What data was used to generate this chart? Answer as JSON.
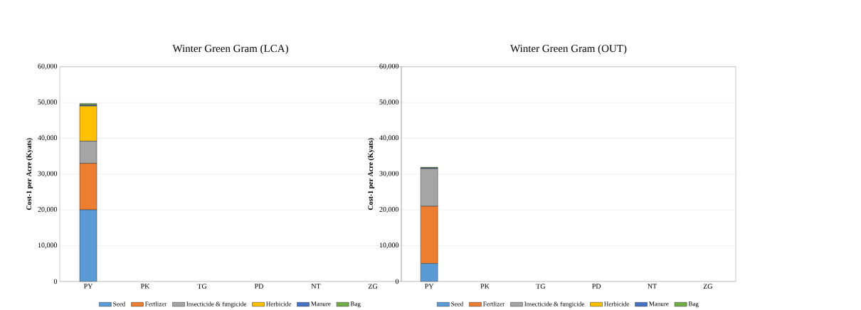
{
  "chart_data": [
    {
      "type": "bar",
      "stacked": true,
      "title": "Winter Green Gram (LCA)",
      "ylabel": "Cost-1 per Acre (Kyats)",
      "categories": [
        "PY",
        "PK",
        "TG",
        "PD",
        "NT",
        "ZG"
      ],
      "series": [
        {
          "name": "Seed",
          "color": "#5b9bd5",
          "values": [
            20000,
            null,
            null,
            null,
            null,
            null
          ]
        },
        {
          "name": "Fertlizer",
          "color": "#ed7d31",
          "values": [
            13000,
            null,
            null,
            null,
            null,
            null
          ]
        },
        {
          "name": "Insecticide & fungicide",
          "color": "#a5a5a5",
          "values": [
            6200,
            null,
            null,
            null,
            null,
            null
          ]
        },
        {
          "name": "Herbicide",
          "color": "#ffc000",
          "values": [
            9800,
            null,
            null,
            null,
            null,
            null
          ]
        },
        {
          "name": "Manure",
          "color": "#4472c4",
          "values": [
            300,
            null,
            null,
            null,
            null,
            null
          ]
        },
        {
          "name": "Bag",
          "color": "#70ad47",
          "values": [
            400,
            null,
            null,
            null,
            null,
            null
          ]
        }
      ],
      "ylim": [
        0,
        60000
      ],
      "yticks": [
        0,
        {
          "value": 10000,
          "label": "10,000"
        },
        {
          "value": 20000,
          "label": "20,000"
        },
        {
          "value": 30000,
          "label": "30,000"
        },
        {
          "value": 40000,
          "label": "40,000"
        },
        {
          "value": 50000,
          "label": "50,000"
        },
        {
          "value": 60000,
          "label": "60,000"
        }
      ],
      "grid": "y",
      "legend": "bottom"
    },
    {
      "type": "bar",
      "stacked": true,
      "title": "Winter Green Gram (OUT)",
      "ylabel": "Cost-1 per Acre (Kyats)",
      "categories": [
        "PY",
        "PK",
        "TG",
        "PD",
        "NT",
        "ZG"
      ],
      "series": [
        {
          "name": "Seed",
          "color": "#5b9bd5",
          "values": [
            5000,
            null,
            null,
            null,
            null,
            null
          ]
        },
        {
          "name": "Fertlizer",
          "color": "#ed7d31",
          "values": [
            16000,
            null,
            null,
            null,
            null,
            null
          ]
        },
        {
          "name": "Insecticide & fungicide",
          "color": "#a5a5a5",
          "values": [
            10500,
            null,
            null,
            null,
            null,
            null
          ]
        },
        {
          "name": "Herbicide",
          "color": "#ffc000",
          "values": [
            0,
            null,
            null,
            null,
            null,
            null
          ]
        },
        {
          "name": "Manure",
          "color": "#4472c4",
          "values": [
            200,
            null,
            null,
            null,
            null,
            null
          ]
        },
        {
          "name": "Bag",
          "color": "#70ad47",
          "values": [
            200,
            null,
            null,
            null,
            null,
            null
          ]
        }
      ],
      "ylim": [
        0,
        60000
      ],
      "yticks": [
        0,
        {
          "value": 10000,
          "label": "10,000"
        },
        {
          "value": 20000,
          "label": "20,000"
        },
        {
          "value": 30000,
          "label": "30,000"
        },
        {
          "value": 40000,
          "label": "40,000"
        },
        {
          "value": 50000,
          "label": "50,000"
        },
        {
          "value": 60000,
          "label": "60,000"
        }
      ],
      "grid": "y",
      "legend": "bottom"
    }
  ]
}
